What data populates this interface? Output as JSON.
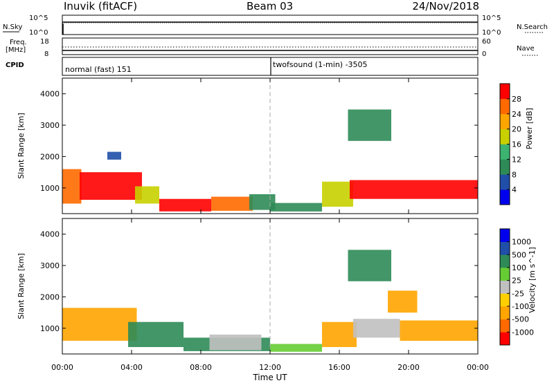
{
  "header": {
    "station": "Inuvik (fitACF)",
    "beam": "Beam 03",
    "date": "24/Nov/2018"
  },
  "strips": {
    "nsky_label": "N.Sky",
    "nsky_ticks": [
      "10^5",
      "10^0"
    ],
    "nsearch_label": "N.Search",
    "nsearch_ticks": [
      "10^5",
      "10^0"
    ],
    "freq_label_1": "Freq.",
    "freq_label_2": "[MHz]",
    "freq_ticks": [
      "18",
      "8"
    ],
    "nave_label": "Nave",
    "nave_ticks": [
      "60",
      "0"
    ],
    "cpid_label": "CPID",
    "cpid_mode_1": "normal (fast) 151",
    "cpid_mode_2": "twofsound (1-min) -3505"
  },
  "chart_data": [
    {
      "type": "heatmap",
      "quantity": "Power",
      "ylabel": "Slant Range [km]",
      "colorbar_label": "Power [dB]",
      "ylim": [
        180,
        4500
      ],
      "yticks": [
        "1000",
        "2000",
        "3000",
        "4000"
      ],
      "colorbar_ticks": [
        "28",
        "24",
        "20",
        "16",
        "12",
        "8",
        "4"
      ],
      "colors": [
        "#0000ee",
        "#1f4fa8",
        "#2e8b57",
        "#3cb371",
        "#c8d000",
        "#ffa500",
        "#ff6a00",
        "#ff0000"
      ],
      "regions": [
        {
          "t0": 0.0,
          "t1": 1.1,
          "r0": 500,
          "r1": 1600,
          "level": 6
        },
        {
          "t0": 1.0,
          "t1": 4.6,
          "r0": 620,
          "r1": 1500,
          "level": 7
        },
        {
          "t0": 4.2,
          "t1": 5.6,
          "r0": 500,
          "r1": 1050,
          "level": 4
        },
        {
          "t0": 5.6,
          "t1": 8.6,
          "r0": 250,
          "r1": 650,
          "level": 7
        },
        {
          "t0": 8.6,
          "t1": 11.0,
          "r0": 270,
          "r1": 720,
          "level": 6
        },
        {
          "t0": 10.8,
          "t1": 12.3,
          "r0": 300,
          "r1": 800,
          "level": 2
        },
        {
          "t0": 12.0,
          "t1": 15.0,
          "r0": 250,
          "r1": 520,
          "level": 2
        },
        {
          "t0": 15.0,
          "t1": 16.8,
          "r0": 400,
          "r1": 1200,
          "level": 4
        },
        {
          "t0": 16.6,
          "t1": 24.0,
          "r0": 650,
          "r1": 1250,
          "level": 7
        },
        {
          "t0": 16.5,
          "t1": 19.0,
          "r0": 2500,
          "r1": 3500,
          "level": 2
        },
        {
          "t0": 2.6,
          "t1": 3.4,
          "r0": 1900,
          "r1": 2150,
          "level": 1
        }
      ]
    },
    {
      "type": "heatmap",
      "quantity": "Velocity",
      "ylabel": "Slant Range [km]",
      "xlabel": "Time UT",
      "colorbar_label": "Velocity [m s^-1]",
      "ylim": [
        180,
        4500
      ],
      "yticks": [
        "1000",
        "2000",
        "3000",
        "4000"
      ],
      "xticks": [
        "00:00",
        "04:00",
        "08:00",
        "12:00",
        "16:00",
        "20:00",
        "00:00"
      ],
      "colorbar_ticks": [
        "1000",
        "500",
        "100",
        "25",
        "-25",
        "-100",
        "-500",
        "-1000"
      ],
      "colors": [
        "#ff0000",
        "#ff6a00",
        "#ffa500",
        "#ffd000",
        "#c0c0c0",
        "#66cc33",
        "#2e8b57",
        "#1f4fa8",
        "#0000ee"
      ],
      "regions": [
        {
          "t0": 0.0,
          "t1": 4.3,
          "r0": 600,
          "r1": 1650,
          "level": 2
        },
        {
          "t0": 3.8,
          "t1": 7.0,
          "r0": 400,
          "r1": 1200,
          "level": 6
        },
        {
          "t0": 7.0,
          "t1": 12.0,
          "r0": 270,
          "r1": 700,
          "level": 6
        },
        {
          "t0": 8.5,
          "t1": 11.5,
          "r0": 300,
          "r1": 800,
          "level": 4
        },
        {
          "t0": 12.0,
          "t1": 15.0,
          "r0": 250,
          "r1": 500,
          "level": 5
        },
        {
          "t0": 15.0,
          "t1": 17.0,
          "r0": 400,
          "r1": 1200,
          "level": 2
        },
        {
          "t0": 16.8,
          "t1": 19.5,
          "r0": 700,
          "r1": 1300,
          "level": 4
        },
        {
          "t0": 19.5,
          "t1": 24.0,
          "r0": 600,
          "r1": 1250,
          "level": 2
        },
        {
          "t0": 16.5,
          "t1": 19.0,
          "r0": 2500,
          "r1": 3500,
          "level": 6
        },
        {
          "t0": 18.8,
          "t1": 20.5,
          "r0": 1500,
          "r1": 2200,
          "level": 2
        }
      ]
    }
  ]
}
